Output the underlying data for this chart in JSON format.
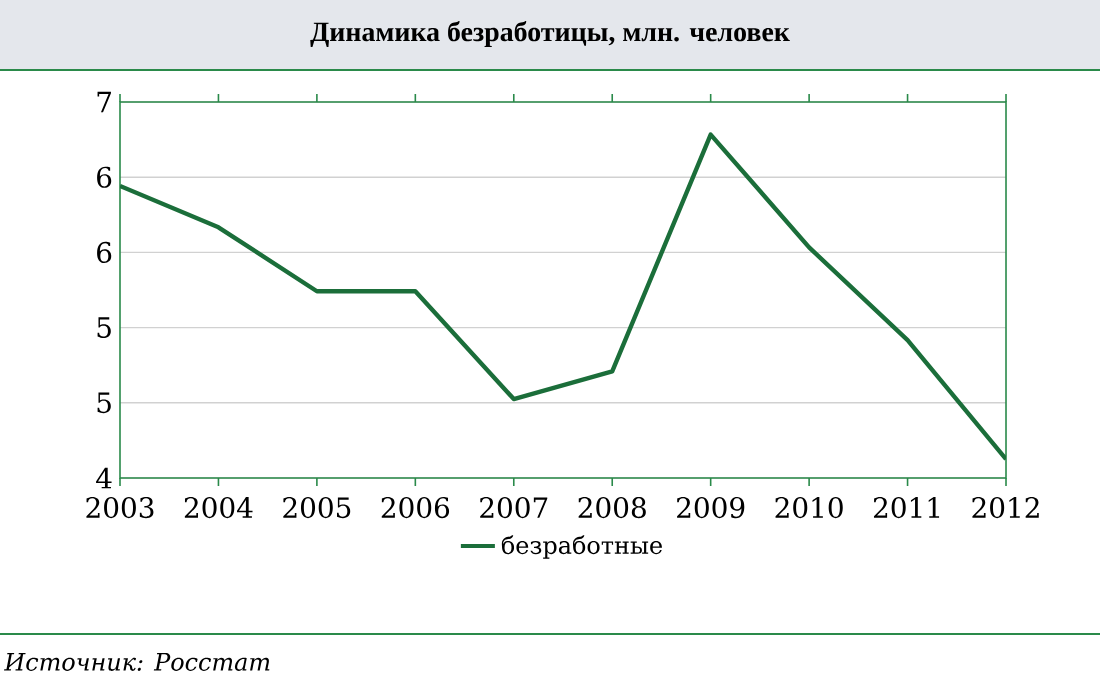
{
  "chart_data": {
    "type": "line",
    "title": "Динамика безработицы, млн. человек",
    "categories": [
      "2003",
      "2004",
      "2005",
      "2006",
      "2007",
      "2008",
      "2009",
      "2010",
      "2011",
      "2012"
    ],
    "series": [
      {
        "name": "безработные",
        "color": "#1b6e3a",
        "values": [
          6.33,
          6.0,
          5.49,
          5.49,
          4.63,
          4.85,
          6.74,
          5.84,
          5.1,
          4.15
        ]
      }
    ],
    "ylim": [
      4,
      7
    ],
    "yticks": [
      4,
      {
        "value": 4.6,
        "label": "5"
      },
      {
        "value": 5.2,
        "label": "5"
      },
      {
        "value": 5.8,
        "label": "6"
      },
      {
        "value": 6.4,
        "label": "6"
      },
      7
    ],
    "grid": "y",
    "legend": "bottom",
    "annotations": [
      "Источник: Росстат"
    ]
  }
}
